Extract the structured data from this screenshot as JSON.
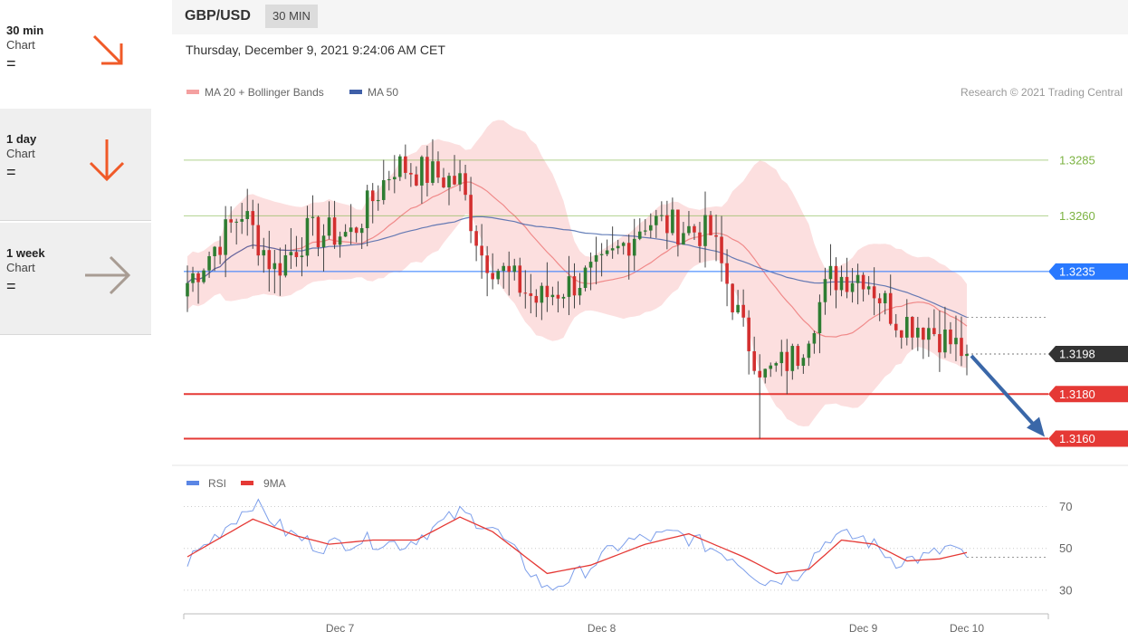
{
  "sidebar": {
    "items": [
      {
        "title": "30 min",
        "sub": "Chart",
        "eq": "=",
        "arrow": "down-right-arrow-icon",
        "color": "#f05a28"
      },
      {
        "title": "1 day",
        "sub": "Chart",
        "eq": "=",
        "arrow": "down-arrow-icon",
        "color": "#f05a28"
      },
      {
        "title": "1 week",
        "sub": "Chart",
        "eq": "=",
        "arrow": "right-arrow-icon",
        "color": "#a89c93"
      }
    ]
  },
  "header": {
    "pair": "GBP/USD",
    "timeframe": "30 MIN"
  },
  "datetime": "Thursday, December 9, 2021 9:24:06 AM CET",
  "legend": {
    "ma20": "MA 20 + Bollinger Bands",
    "ma50": "MA 50",
    "copyright": "Research © 2021 Trading Central"
  },
  "rsi_legend": {
    "rsi": "RSI",
    "ma": "9MA"
  },
  "colors": {
    "resistance": "#7cb342",
    "pivot": "#2979ff",
    "support": "#e53935",
    "current": "#333333",
    "bull": "#2e7d32",
    "bear": "#d32f2f",
    "band": "#fbd4d4",
    "ma20": "#f08a8a",
    "ma50": "#3f5fa8",
    "rsi": "#5b86e5",
    "rsi_ma": "#e53935",
    "arrow": "#3a67a8"
  },
  "chart_data": {
    "type": "candlestick",
    "y_axis": {
      "min": 1.3148,
      "max": 1.33
    },
    "levels": [
      {
        "label": "1.3285",
        "value": 1.3285,
        "kind": "resistance"
      },
      {
        "label": "1.3260",
        "value": 1.326,
        "kind": "resistance"
      },
      {
        "label": "1.3235",
        "value": 1.3235,
        "kind": "pivot"
      },
      {
        "label": "1.3198",
        "value": 1.3198,
        "kind": "current"
      },
      {
        "label": "1.3180",
        "value": 1.318,
        "kind": "support"
      },
      {
        "label": "1.3160",
        "value": 1.316,
        "kind": "support"
      }
    ],
    "x_labels": [
      {
        "label": "Dec 7",
        "index": 28
      },
      {
        "label": "Dec 8",
        "index": 76
      },
      {
        "label": "Dec 9",
        "index": 124
      },
      {
        "label": "Dec 10",
        "index": 143
      }
    ],
    "candle_count": 144,
    "close_keypoints": [
      [
        0,
        1.323
      ],
      [
        10,
        1.3262
      ],
      [
        16,
        1.3236
      ],
      [
        22,
        1.3252
      ],
      [
        30,
        1.3252
      ],
      [
        38,
        1.3283
      ],
      [
        50,
        1.3275
      ],
      [
        54,
        1.3243
      ],
      [
        64,
        1.3222
      ],
      [
        76,
        1.3236
      ],
      [
        84,
        1.3258
      ],
      [
        96,
        1.3252
      ],
      [
        102,
        1.3208
      ],
      [
        106,
        1.3188
      ],
      [
        112,
        1.3198
      ],
      [
        118,
        1.3232
      ],
      [
        124,
        1.3234
      ],
      [
        130,
        1.3214
      ],
      [
        136,
        1.321
      ],
      [
        143,
        1.3198
      ]
    ],
    "rsi": {
      "ticks": [
        30,
        50,
        70
      ],
      "range": [
        20,
        75
      ],
      "keypoints": [
        [
          0,
          44
        ],
        [
          6,
          58
        ],
        [
          12,
          72
        ],
        [
          18,
          58
        ],
        [
          24,
          51
        ],
        [
          32,
          54
        ],
        [
          40,
          52
        ],
        [
          50,
          67
        ],
        [
          56,
          60
        ],
        [
          66,
          30
        ],
        [
          72,
          38
        ],
        [
          80,
          53
        ],
        [
          90,
          57
        ],
        [
          100,
          46
        ],
        [
          106,
          34
        ],
        [
          112,
          38
        ],
        [
          118,
          56
        ],
        [
          124,
          55
        ],
        [
          130,
          44
        ],
        [
          136,
          46
        ],
        [
          140,
          51
        ],
        [
          143,
          44
        ]
      ],
      "ma_keypoints": [
        [
          0,
          46
        ],
        [
          12,
          64
        ],
        [
          20,
          56
        ],
        [
          26,
          52
        ],
        [
          34,
          54
        ],
        [
          42,
          54
        ],
        [
          50,
          65
        ],
        [
          56,
          58
        ],
        [
          66,
          38
        ],
        [
          74,
          42
        ],
        [
          84,
          52
        ],
        [
          92,
          57
        ],
        [
          102,
          46
        ],
        [
          108,
          38
        ],
        [
          114,
          40
        ],
        [
          120,
          54
        ],
        [
          126,
          52
        ],
        [
          132,
          44
        ],
        [
          138,
          45
        ],
        [
          143,
          48
        ]
      ]
    }
  }
}
